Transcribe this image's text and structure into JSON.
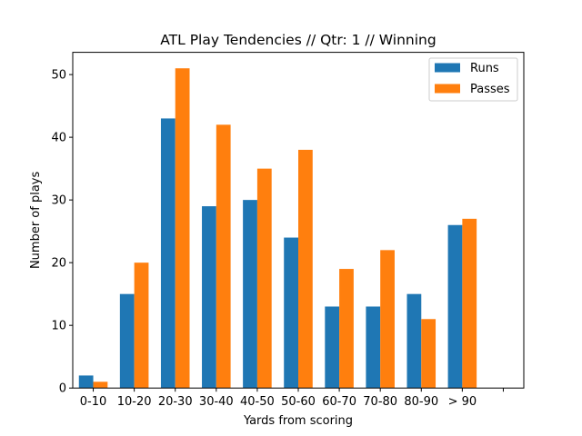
{
  "chart_data": {
    "type": "bar",
    "title": "ATL Play Tendencies // Qtr: 1 // Winning",
    "xlabel": "Yards from scoring",
    "ylabel": "Number of plays",
    "categories": [
      "0-10",
      "10-20",
      "20-30",
      "30-40",
      "40-50",
      "50-60",
      "60-70",
      "70-80",
      "80-90",
      "> 90",
      ""
    ],
    "series": [
      {
        "name": "Runs",
        "color": "#1f77b4",
        "values": [
          2,
          15,
          43,
          29,
          30,
          24,
          13,
          13,
          15,
          26,
          null
        ]
      },
      {
        "name": "Passes",
        "color": "#ff7f0e",
        "values": [
          1,
          20,
          51,
          42,
          35,
          38,
          19,
          22,
          11,
          27,
          null
        ]
      }
    ],
    "ylim": [
      0,
      53.55
    ],
    "yticks": [
      0,
      10,
      20,
      30,
      40,
      50
    ],
    "grid": false,
    "legend": "upper right"
  }
}
